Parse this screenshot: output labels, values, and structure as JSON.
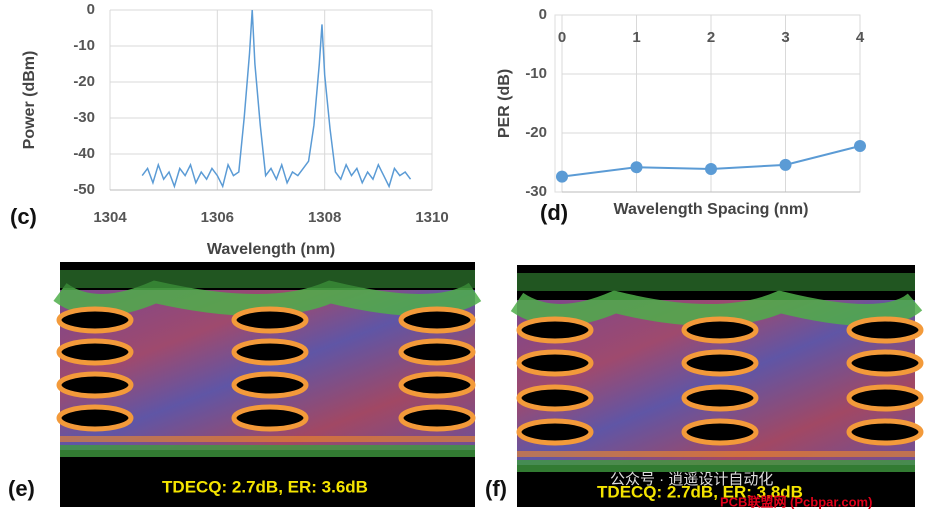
{
  "chart_data": [
    {
      "type": "line",
      "xlabel": "Wavelength (nm)",
      "ylabel": "Power (dBm)",
      "x": [
        1304.6,
        1304.7,
        1304.8,
        1304.9,
        1305.0,
        1305.1,
        1305.2,
        1305.3,
        1305.4,
        1305.5,
        1305.6,
        1305.7,
        1305.8,
        1305.9,
        1306.0,
        1306.1,
        1306.2,
        1306.3,
        1306.4,
        1306.5,
        1306.6,
        1306.65,
        1306.7,
        1306.8,
        1306.9,
        1307.0,
        1307.1,
        1307.2,
        1307.3,
        1307.4,
        1307.5,
        1307.6,
        1307.7,
        1307.8,
        1307.9,
        1307.95,
        1308.0,
        1308.1,
        1308.2,
        1308.3,
        1308.4,
        1308.5,
        1308.6,
        1308.7,
        1308.8,
        1308.9,
        1309.0,
        1309.1,
        1309.2,
        1309.3,
        1309.4,
        1309.5,
        1309.6
      ],
      "values": [
        -46,
        -44,
        -48,
        -43,
        -47,
        -45,
        -49,
        -44,
        -46,
        -43,
        -48,
        -45,
        -47,
        -44,
        -46,
        -49,
        -43,
        -46,
        -45,
        -30,
        -12,
        0,
        -15,
        -32,
        -46,
        -44,
        -47,
        -43,
        -48,
        -45,
        -46,
        -44,
        -42,
        -32,
        -15,
        -4,
        -18,
        -33,
        -45,
        -47,
        -43,
        -46,
        -44,
        -48,
        -45,
        -47,
        -43,
        -46,
        -49,
        -44,
        -46,
        -45,
        -47
      ],
      "color": "#5b9bd5",
      "xlim": [
        1304,
        1310
      ],
      "xticks": [
        1304,
        1306,
        1308,
        1310
      ],
      "ylim": [
        -50,
        0
      ],
      "yticks": [
        0,
        -10,
        -20,
        -30,
        -40,
        -50
      ],
      "grid": true
    },
    {
      "type": "line",
      "xlabel": "Wavelength Spacing (nm)",
      "ylabel": "PER (dB)",
      "x": [
        0,
        1,
        2,
        3,
        4
      ],
      "values": [
        -27.4,
        -25.8,
        -26.1,
        -25.4,
        -22.2
      ],
      "color": "#5b9bd5",
      "marker": true,
      "xaxis_position": "top",
      "xlim": [
        0,
        4
      ],
      "xticks": [
        0,
        1,
        2,
        3,
        4
      ],
      "ylim": [
        -30,
        0
      ],
      "yticks": [
        0,
        -10,
        -20,
        -30
      ],
      "grid": true
    }
  ],
  "panel_labels": [
    "(c)",
    "(d)",
    "(e)",
    "(f)"
  ],
  "eye_captions": [
    "TDECQ: 2.7dB, ER: 3.6dB",
    "TDECQ: 2.7dB, ER: 3.8dB"
  ],
  "watermarks": [
    "公众号 · 逍遥设计自动化",
    "PCB联盟网 (Pcbpar.com)"
  ]
}
